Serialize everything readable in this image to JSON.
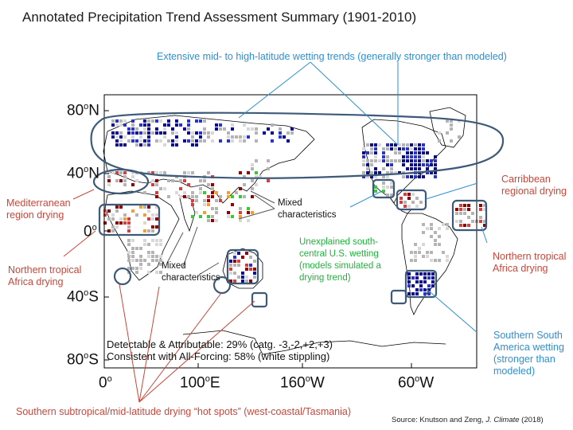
{
  "title": "Annotated Precipitation Trend Assessment Summary (1901-2010)",
  "annotations": {
    "wetting_trends": "Extensive mid- to high-latitude wetting trends (generally stronger than modeled)",
    "mediterranean": [
      "Mediterranean",
      "region drying"
    ],
    "n_trop_africa_left": [
      "Northern tropical",
      "Africa drying"
    ],
    "mixed_1": [
      "Mixed",
      "characteristics"
    ],
    "mixed_2": [
      "Mixed",
      "characteristics"
    ],
    "us_wetting": [
      "Unexplained south-",
      "central U.S. wetting",
      "(models simulated a",
      "drying trend)"
    ],
    "caribbean": [
      "Carribbean",
      "regional drying"
    ],
    "n_trop_africa_right": [
      "Northern tropical",
      "Africa drying"
    ],
    "s_america": [
      "Southern South",
      "America wetting",
      "(stronger than",
      "modeled)"
    ],
    "hot_spots": "Southern subtropical/mid-latitude drying “hot spots” (west-coastal/Tasmania)",
    "stat_1": "Detectable & Attributable: 29% (catg. -3,-2,+2,+3)",
    "stat_2": "Consistent with All-Forcing: 58% (white stippling)"
  },
  "axes": {
    "lat_labels": [
      "80",
      "N",
      "40",
      "N",
      "0",
      "40",
      "S",
      "80",
      "S"
    ],
    "lon_labels": [
      "0",
      "100",
      "E",
      "160",
      "W",
      "60",
      "W"
    ],
    "degree_mark": "o"
  },
  "source": {
    "prefix": "Source:  Knutson and Zeng, ",
    "journal": "J. Climate",
    "suffix": " (2018)"
  },
  "colors": {
    "wetting_strong": "#0a0a8c",
    "wetting": "#2a35c8",
    "drying_strong": "#8b0000",
    "drying": "#d04040",
    "neutral": "#b4b4b4",
    "green": "#3ac83a",
    "orange": "#f0a030",
    "outline": "#3d5a78"
  }
}
